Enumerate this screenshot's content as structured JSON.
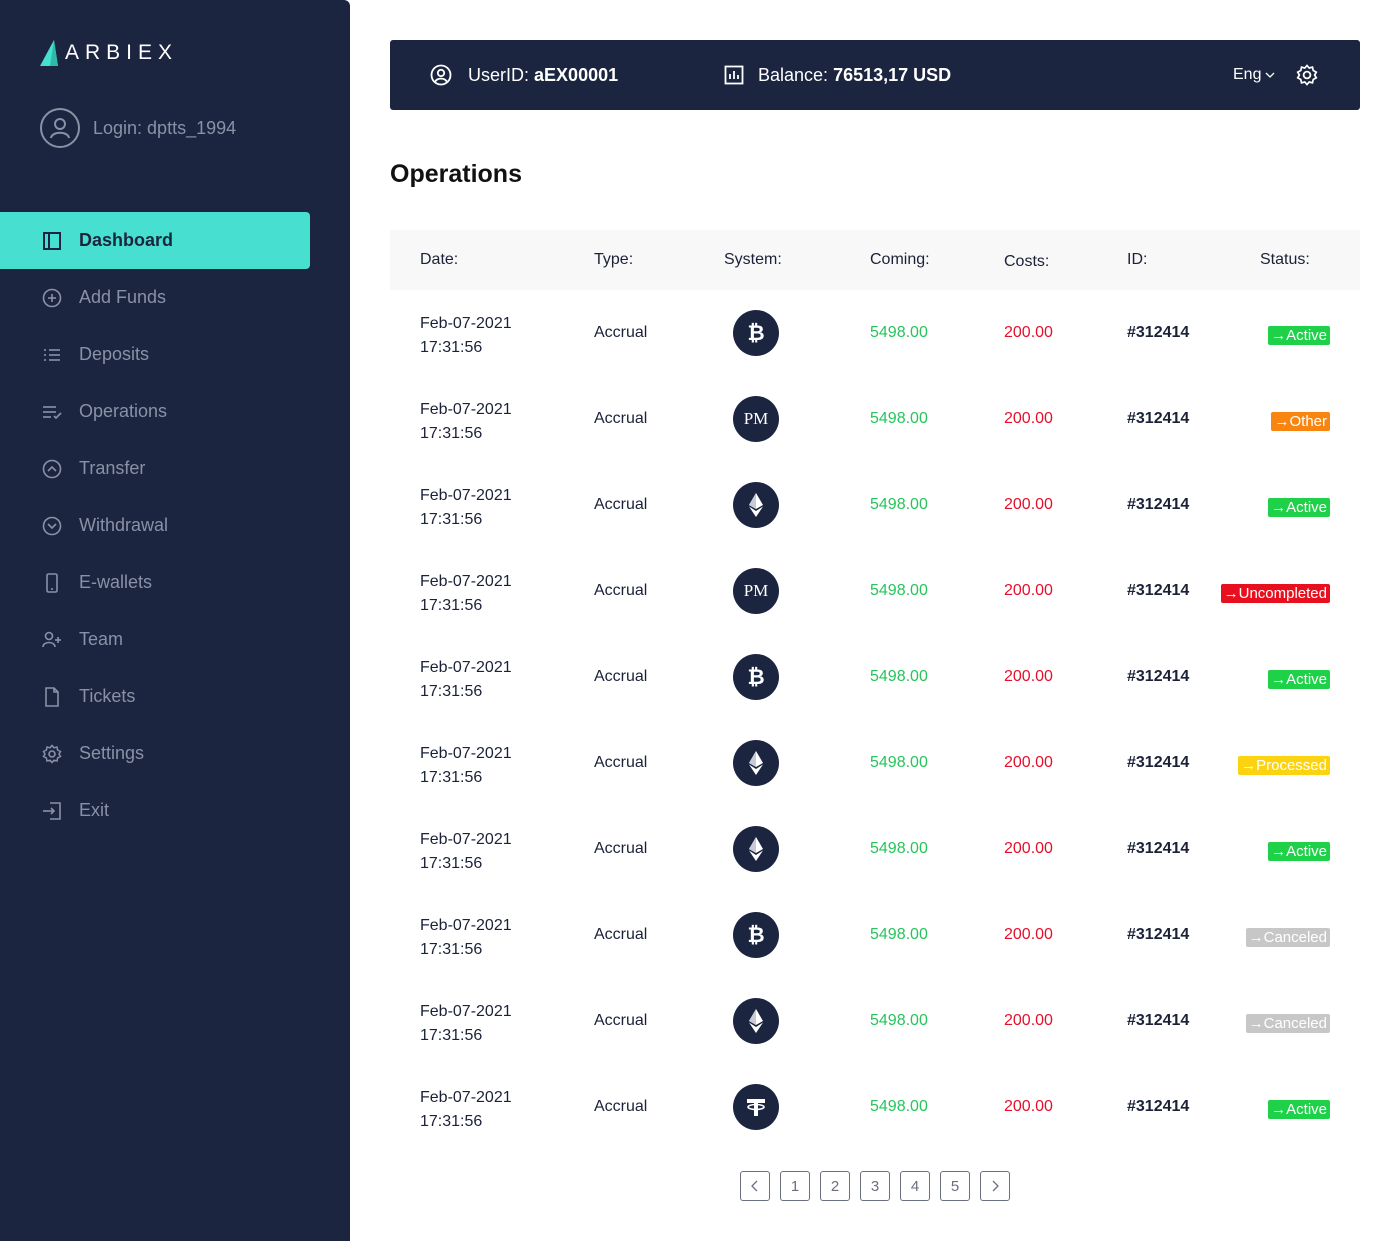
{
  "brand": {
    "name": "ARBIEX",
    "accent": "#47dfcf"
  },
  "sidebar": {
    "login_label": "Login: dptts_1994",
    "items": [
      {
        "label": "Dashboard",
        "icon": "dashboard-icon",
        "active": true
      },
      {
        "label": "Add Funds",
        "icon": "plus-circle-icon"
      },
      {
        "label": "Deposits",
        "icon": "list-icon"
      },
      {
        "label": "Operations",
        "icon": "operations-list-icon"
      },
      {
        "label": "Transfer",
        "icon": "chevron-up-circle-icon"
      },
      {
        "label": "Withdrawal",
        "icon": "chevron-down-circle-icon"
      },
      {
        "label": "E-wallets",
        "icon": "phone-icon"
      },
      {
        "label": "Team",
        "icon": "add-user-icon"
      },
      {
        "label": "Tickets",
        "icon": "file-icon"
      },
      {
        "label": "Settings",
        "icon": "gear-icon"
      },
      {
        "label": "Exit",
        "icon": "exit-icon"
      }
    ]
  },
  "header": {
    "user_label": "UserID:",
    "user_value": "aEX00001",
    "balance_label": "Balance:",
    "balance_value": "76513,17 USD",
    "language": "Eng"
  },
  "page": {
    "title": "Operations"
  },
  "table": {
    "columns": [
      "Date:",
      "Type:",
      "System:",
      "Coming:",
      "Costs:",
      "ID:",
      "Status:"
    ],
    "rows": [
      {
        "date": "Feb-07-2021",
        "time": "17:31:56",
        "type": "Accrual",
        "system": "bitcoin",
        "coming": "5498.00",
        "costs": "200.00",
        "id": "#312414",
        "status": "Active",
        "status_color": "#1ed148"
      },
      {
        "date": "Feb-07-2021",
        "time": "17:31:56",
        "type": "Accrual",
        "system": "perfect-money",
        "coming": "5498.00",
        "costs": "200.00",
        "id": "#312414",
        "status": "Other",
        "status_color": "#f7850f"
      },
      {
        "date": "Feb-07-2021",
        "time": "17:31:56",
        "type": "Accrual",
        "system": "ethereum",
        "coming": "5498.00",
        "costs": "200.00",
        "id": "#312414",
        "status": "Active",
        "status_color": "#1ed148"
      },
      {
        "date": "Feb-07-2021",
        "time": "17:31:56",
        "type": "Accrual",
        "system": "perfect-money",
        "coming": "5498.00",
        "costs": "200.00",
        "id": "#312414",
        "status": "Uncompleted",
        "status_color": "#e8101e"
      },
      {
        "date": "Feb-07-2021",
        "time": "17:31:56",
        "type": "Accrual",
        "system": "bitcoin",
        "coming": "5498.00",
        "costs": "200.00",
        "id": "#312414",
        "status": "Active",
        "status_color": "#1ed148"
      },
      {
        "date": "Feb-07-2021",
        "time": "17:31:56",
        "type": "Accrual",
        "system": "ethereum",
        "coming": "5498.00",
        "costs": "200.00",
        "id": "#312414",
        "status": "Processed",
        "status_color": "#fbd311"
      },
      {
        "date": "Feb-07-2021",
        "time": "17:31:56",
        "type": "Accrual",
        "system": "ethereum",
        "coming": "5498.00",
        "costs": "200.00",
        "id": "#312414",
        "status": "Active",
        "status_color": "#1ed148"
      },
      {
        "date": "Feb-07-2021",
        "time": "17:31:56",
        "type": "Accrual",
        "system": "bitcoin",
        "coming": "5498.00",
        "costs": "200.00",
        "id": "#312414",
        "status": "Canceled",
        "status_color": "#c7c7c7"
      },
      {
        "date": "Feb-07-2021",
        "time": "17:31:56",
        "type": "Accrual",
        "system": "ethereum",
        "coming": "5498.00",
        "costs": "200.00",
        "id": "#312414",
        "status": "Canceled",
        "status_color": "#c7c7c7"
      },
      {
        "date": "Feb-07-2021",
        "time": "17:31:56",
        "type": "Accrual",
        "system": "tether",
        "coming": "5498.00",
        "costs": "200.00",
        "id": "#312414",
        "status": "Active",
        "status_color": "#1ed148"
      }
    ]
  },
  "pagination": {
    "pages": [
      "1",
      "2",
      "3",
      "4",
      "5"
    ]
  }
}
